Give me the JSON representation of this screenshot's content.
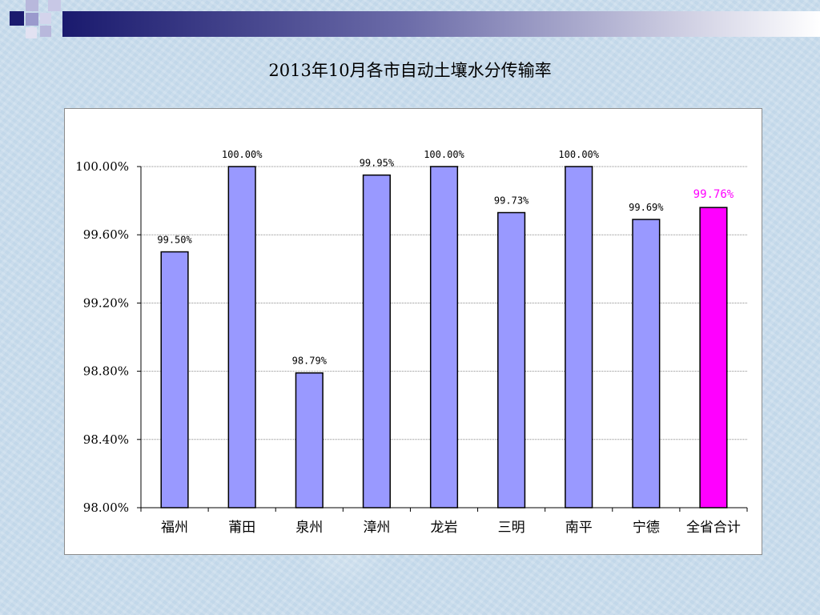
{
  "slide": {
    "title": "2013年10月各市自动土壤水分传输率"
  },
  "colors": {
    "bar": "#9999ff",
    "highlight_bar": "#ff00ff",
    "highlight_label": "#ff00ff",
    "banner_navy": "#1a1a6e",
    "banner_square": "#9a9acd"
  },
  "chart_data": {
    "type": "bar",
    "title": "2013年10月各市自动土壤水分传输率",
    "categories": [
      "福州",
      "莆田",
      "泉州",
      "漳州",
      "龙岩",
      "三明",
      "南平",
      "宁德",
      "全省合计"
    ],
    "values": [
      99.5,
      100.0,
      98.79,
      99.95,
      100.0,
      99.73,
      100.0,
      99.69,
      99.76
    ],
    "data_labels": [
      "99.50%",
      "100.00%",
      "98.79%",
      "99.95%",
      "100.00%",
      "99.73%",
      "100.00%",
      "99.69%",
      "99.76%"
    ],
    "highlight_index": 8,
    "ylim": [
      98.0,
      100.0
    ],
    "y_ticks": [
      98.0,
      98.4,
      98.8,
      99.2,
      99.6,
      100.0
    ],
    "y_tick_labels": [
      "98.00%",
      "98.40%",
      "98.80%",
      "99.20%",
      "99.60%",
      "100.00%"
    ],
    "grid": true,
    "legend": "none",
    "xlabel": "",
    "ylabel": ""
  }
}
